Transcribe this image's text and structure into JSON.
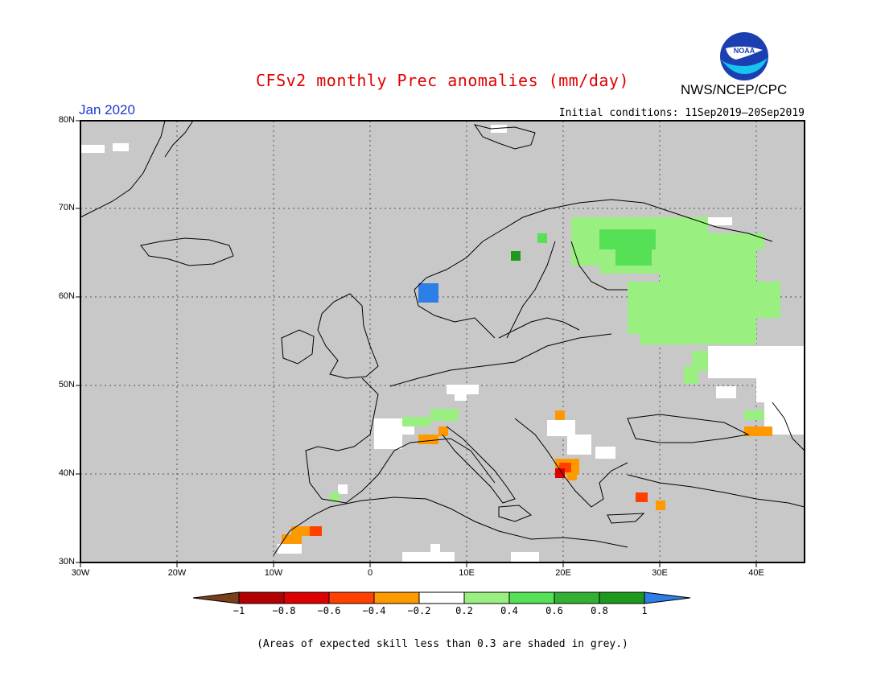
{
  "title": "CFSv2 monthly Prec anomalies (mm/day)",
  "agency": "NWS/NCEP/CPC",
  "logo": {
    "text": "NOAA"
  },
  "valid_month": "Jan 2020",
  "initial_conditions": "Initial conditions: 11Sep2019–20Sep2019",
  "lat_labels": [
    "80N",
    "70N",
    "60N",
    "50N",
    "40N",
    "30N"
  ],
  "lon_labels": [
    "30W",
    "20W",
    "10W",
    "0",
    "10E",
    "20E",
    "30E",
    "40E"
  ],
  "colorbar": {
    "labels": [
      "−1",
      "−0.8",
      "−0.6",
      "−0.4",
      "−0.2",
      "0.2",
      "0.4",
      "0.6",
      "0.8",
      "1"
    ],
    "colors": [
      "#7a3f1a",
      "#b30000",
      "#dd0000",
      "#ff4000",
      "#ff9900",
      "#ffffff",
      "#99f080",
      "#55e055",
      "#33b033",
      "#1b9a1b",
      "#2e7ee8"
    ]
  },
  "footnote": "(Areas of expected skill less than 0.3 are shaded in grey.)",
  "colors": {
    "skill_grey": "#c8c8c8",
    "title_red": "#e00000",
    "month_blue": "#1b38d4"
  }
}
